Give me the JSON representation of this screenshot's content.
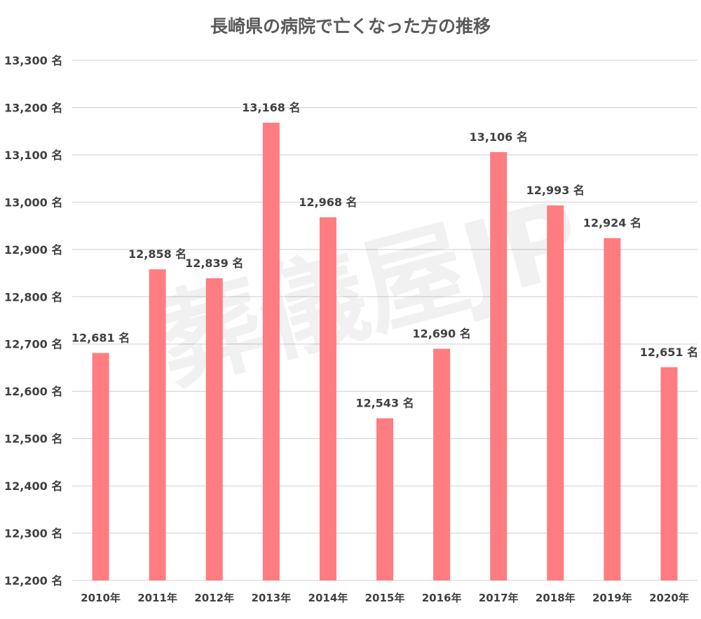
{
  "chart_data": {
    "type": "bar",
    "title": "長崎県の病院で亡くなった方の推移",
    "categories": [
      "2010年",
      "2011年",
      "2012年",
      "2013年",
      "2014年",
      "2015年",
      "2016年",
      "2017年",
      "2018年",
      "2019年",
      "2020年"
    ],
    "values": [
      12681,
      12858,
      12839,
      13168,
      12968,
      12543,
      12690,
      13106,
      12993,
      12924,
      12651
    ],
    "data_labels": [
      "12,681 名",
      "12,858 名",
      "12,839 名",
      "13,168 名",
      "12,968 名",
      "12,543 名",
      "12,690 名",
      "13,106 名",
      "12,993 名",
      "12,924 名",
      "12,651 名"
    ],
    "unit": "名",
    "xlabel": "",
    "ylabel": "",
    "ylim": [
      12200,
      13300
    ],
    "ytick_step": 100,
    "yticks": [
      12200,
      12300,
      12400,
      12500,
      12600,
      12700,
      12800,
      12900,
      13000,
      13100,
      13200,
      13300
    ],
    "ytick_labels": [
      "12,200 名",
      "12,300 名",
      "12,400 名",
      "12,500 名",
      "12,600 名",
      "12,700 名",
      "12,800 名",
      "12,900 名",
      "13,000 名",
      "13,100 名",
      "13,200 名",
      "13,300 名"
    ],
    "grid": true,
    "legend": "none",
    "bar_color": "#ff7c80",
    "grid_color": "#d9d9d9",
    "watermark": "葬儀屋JP"
  }
}
